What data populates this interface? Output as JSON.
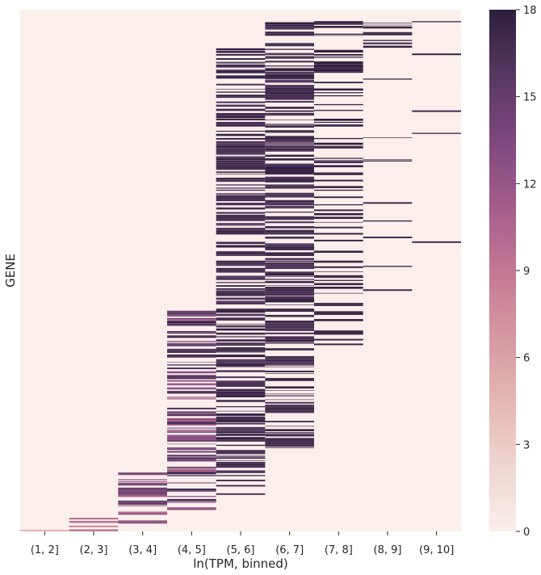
{
  "chart_data": {
    "type": "heatmap",
    "title": "",
    "xlabel": "ln(TPM, binned)",
    "ylabel": "GENE",
    "x_categories": [
      "(1, 2]",
      "(2, 3]",
      "(3, 4]",
      "(4, 5]",
      "(5, 6]",
      "(6, 7]",
      "(7, 8]",
      "(8, 9]",
      "(9, 10]"
    ],
    "n_rows": 1000,
    "row_order": "sorted by expression bin, highest bin at top",
    "background_value": 0,
    "colorbar": {
      "range": [
        0,
        18
      ],
      "ticks": [
        "0",
        "3",
        "6",
        "9",
        "12",
        "15",
        "18"
      ],
      "colors": [
        "#faefeb",
        "#efd5cf",
        "#e4b7b4",
        "#d697a0",
        "#c47894",
        "#a35c8b",
        "#7d487d",
        "#573860",
        "#2d1e3e"
      ]
    },
    "columns": [
      {
        "bin": "(1, 2]",
        "active_from": 0.997,
        "active_to": 1.0,
        "density": 0.9,
        "value_range": [
          3,
          6
        ],
        "note": "single faint row at bottom"
      },
      {
        "bin": "(2, 3]",
        "active_from": 0.97,
        "active_to": 1.0,
        "density": 0.6,
        "value_range": [
          6,
          11
        ],
        "note": "short band near bottom"
      },
      {
        "bin": "(3, 4]",
        "active_from": 0.885,
        "active_to": 0.985,
        "density": 0.55,
        "value_range": [
          10,
          16
        ]
      },
      {
        "bin": "(4, 5]",
        "active_from": 0.57,
        "active_to": 0.96,
        "density": 0.5,
        "value_range": [
          11,
          18
        ],
        "note": "denser in lower part"
      },
      {
        "bin": "(5, 6]",
        "active_from": 0.07,
        "active_to": 0.93,
        "density": 0.6,
        "value_range": [
          16,
          18
        ],
        "note": "densest between 0.25 and 0.70"
      },
      {
        "bin": "(6, 7]",
        "active_from": 0.02,
        "active_to": 0.84,
        "density": 0.55,
        "value_range": [
          16,
          18
        ],
        "note": "densest between 0.02 and 0.45"
      },
      {
        "bin": "(7, 8]",
        "active_from": 0.01,
        "active_to": 0.65,
        "density": 0.35,
        "value_range": [
          17,
          18
        ],
        "note": "dense block near top"
      },
      {
        "bin": "(8, 9]",
        "active_from": 0.0,
        "active_to": 0.56,
        "density": 0.1,
        "value_range": [
          17,
          18
        ],
        "note": "sparse rows"
      },
      {
        "bin": "(9, 10]",
        "active_from": 0.0,
        "active_to": 0.49,
        "density": 0.04,
        "value_range": [
          17,
          18
        ],
        "note": "very sparse rows"
      }
    ]
  }
}
